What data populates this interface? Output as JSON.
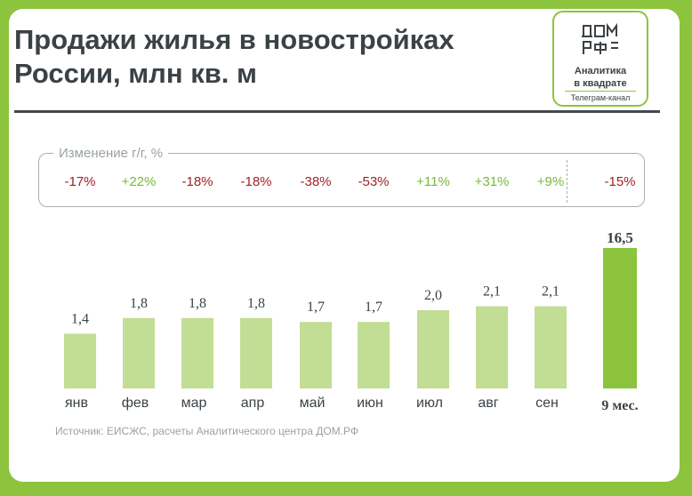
{
  "header": {
    "title_line1": "Продажи жилья в новостройках",
    "title_line2": "России, млн кв. м"
  },
  "logo": {
    "line1": "Аналитика",
    "line2": "в квадрате",
    "line3": "Телеграм-канал",
    "mark_text": "ДОМ РФ"
  },
  "yoy": {
    "label": "Изменение г/г, %",
    "values": [
      {
        "text": "-17%",
        "sign": "neg"
      },
      {
        "text": "+22%",
        "sign": "pos"
      },
      {
        "text": "-18%",
        "sign": "neg"
      },
      {
        "text": "-18%",
        "sign": "neg"
      },
      {
        "text": "-38%",
        "sign": "neg"
      },
      {
        "text": "-53%",
        "sign": "neg"
      },
      {
        "text": "+11%",
        "sign": "pos"
      },
      {
        "text": "+31%",
        "sign": "pos"
      },
      {
        "text": "+9%",
        "sign": "pos"
      },
      {
        "text": "-15%",
        "sign": "neg"
      }
    ]
  },
  "colors": {
    "bar_month": "#c2dd94",
    "bar_total": "#8cc43e",
    "negative": "#a0202a",
    "positive": "#78b83c",
    "text": "#3b4246"
  },
  "chart_data": {
    "type": "bar",
    "title": "Продажи жилья в новостройках России, млн кв. м",
    "categories": [
      "янв",
      "фев",
      "мар",
      "апр",
      "май",
      "июн",
      "июл",
      "авг",
      "сен"
    ],
    "values": [
      1.4,
      1.8,
      1.8,
      1.8,
      1.7,
      1.7,
      2.0,
      2.1,
      2.1
    ],
    "value_labels": [
      "1,4",
      "1,8",
      "1,8",
      "1,8",
      "1,7",
      "1,7",
      "2,0",
      "2,1",
      "2,1"
    ],
    "total": {
      "category": "9 мес.",
      "value": 16.5,
      "value_label": "16,5"
    },
    "ylim": [
      0,
      2.3
    ]
  },
  "footer": {
    "source": "Источник: ЕИСЖС, расчеты Аналитического центра ДОМ.РФ"
  }
}
